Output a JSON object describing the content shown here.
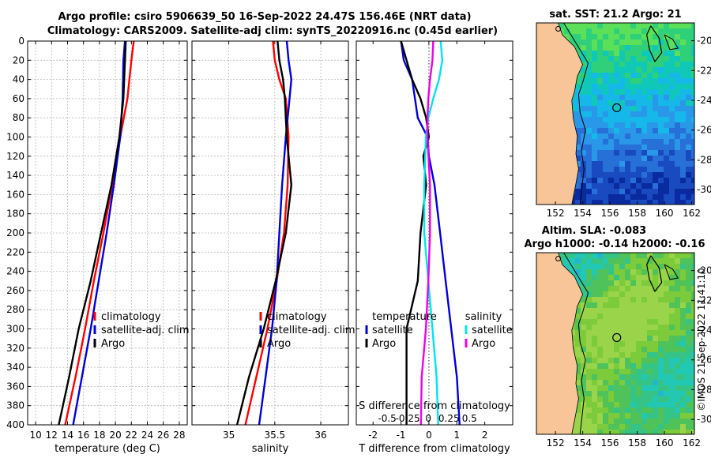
{
  "title_line1": "Argo profile: csiro 5906639_50 16-Sep-2022 24.47S 156.46E (NRT data)",
  "title_line2": "Climatology: CARS2009. Satellite-adj clim: synTS_20220916.nc (0.45d earlier)",
  "side_text": "©IMOS 21-Sep-2022 11:41:10",
  "colors": {
    "climatology": "#ff0000",
    "satellite": "#0000dd",
    "argo": "#000000",
    "sat_s": "#00e5ee",
    "argo_s": "#ee00ee"
  },
  "chart_data": [
    {
      "type": "line",
      "id": "temperature",
      "xlabel": "temperature (deg C)",
      "xlim": [
        9,
        29
      ],
      "xticks": [
        10,
        12,
        14,
        16,
        18,
        20,
        22,
        24,
        26,
        28
      ],
      "ylim": [
        0,
        400
      ],
      "yticks": [
        0,
        20,
        40,
        60,
        80,
        100,
        120,
        140,
        160,
        180,
        200,
        220,
        240,
        260,
        280,
        300,
        320,
        340,
        360,
        380,
        400
      ],
      "grid": true,
      "legend": [
        "climatology",
        "satellite-adj. clim",
        "Argo"
      ],
      "series": [
        {
          "name": "climatology",
          "color": "#ff0000",
          "depth": [
            0,
            20,
            60,
            100,
            150,
            200,
            250,
            300,
            350,
            400
          ],
          "values": [
            22.3,
            22.0,
            21.5,
            20.6,
            19.6,
            18.5,
            17.3,
            16.2,
            15.0,
            13.7
          ]
        },
        {
          "name": "satellite-adj. clim",
          "color": "#0000dd",
          "depth": [
            0,
            20,
            60,
            100,
            150,
            200,
            250,
            300,
            350,
            400
          ],
          "values": [
            21.2,
            21.0,
            20.9,
            20.6,
            19.8,
            18.9,
            17.9,
            16.9,
            15.8,
            14.7
          ]
        },
        {
          "name": "Argo",
          "color": "#000000",
          "depth": [
            0,
            20,
            60,
            100,
            150,
            200,
            250,
            300,
            350,
            400
          ],
          "values": [
            21.3,
            21.2,
            21.0,
            20.5,
            19.5,
            18.2,
            16.9,
            15.4,
            14.2,
            12.9
          ]
        }
      ]
    },
    {
      "type": "line",
      "id": "salinity",
      "xlabel": "salinity",
      "xlim": [
        34.6,
        36.3
      ],
      "xticks": [
        35,
        35.5,
        36
      ],
      "ylim": [
        0,
        400
      ],
      "grid": true,
      "legend": [
        "climatology",
        "satellite-adj. clim",
        "Argo"
      ],
      "series": [
        {
          "name": "climatology",
          "color": "#ff0000",
          "depth": [
            0,
            20,
            40,
            60,
            100,
            150,
            200,
            250,
            300,
            350,
            400
          ],
          "values": [
            35.48,
            35.5,
            35.55,
            35.62,
            35.65,
            35.64,
            35.6,
            35.52,
            35.42,
            35.3,
            35.18
          ]
        },
        {
          "name": "satellite-adj. clim",
          "color": "#0000dd",
          "depth": [
            0,
            20,
            40,
            60,
            100,
            150,
            200,
            250,
            300,
            350,
            400
          ],
          "values": [
            35.63,
            35.65,
            35.68,
            35.66,
            35.62,
            35.58,
            35.55,
            35.52,
            35.47,
            35.4,
            35.33
          ]
        },
        {
          "name": "Argo",
          "color": "#000000",
          "depth": [
            0,
            20,
            40,
            60,
            100,
            150,
            200,
            250,
            300,
            350,
            400
          ],
          "values": [
            35.53,
            35.55,
            35.59,
            35.61,
            35.63,
            35.68,
            35.62,
            35.51,
            35.38,
            35.22,
            35.09
          ]
        }
      ]
    },
    {
      "type": "line",
      "id": "difference",
      "xlabel": "T difference from climatology",
      "xlabel_top": "S difference from climatology",
      "xlim": [
        -2.6,
        3
      ],
      "xticks": [
        -2,
        -1,
        0,
        1,
        2
      ],
      "s_ticks": [
        -0.5,
        -0.25,
        0,
        0.25,
        0.5
      ],
      "s_tick_labels": [
        "-0.5",
        "-0.25",
        "0",
        "0.25",
        "0.5"
      ],
      "ylim": [
        0,
        400
      ],
      "grid": false,
      "legend_left_title": "temperature",
      "legend_right_title": "salinity",
      "legend_left": [
        "satellite",
        "Argo"
      ],
      "legend_right": [
        "satellite",
        "Argo"
      ],
      "series": [
        {
          "name": "T satellite",
          "color": "#0000dd",
          "depth": [
            0,
            20,
            40,
            60,
            80,
            100,
            120,
            150,
            200,
            250,
            300,
            350,
            400
          ],
          "values": [
            -1.0,
            -0.9,
            -0.6,
            -0.5,
            -0.4,
            -0.05,
            0.0,
            0.2,
            0.4,
            0.6,
            0.8,
            1.0,
            1.1
          ]
        },
        {
          "name": "T Argo",
          "color": "#000000",
          "depth": [
            0,
            20,
            40,
            60,
            80,
            100,
            120,
            150,
            200,
            250,
            300,
            350,
            400
          ],
          "values": [
            -1.0,
            -0.8,
            -0.6,
            -0.3,
            -0.1,
            0.0,
            -0.2,
            -0.1,
            -0.3,
            -0.4,
            -0.8,
            -0.8,
            -0.8
          ]
        },
        {
          "name": "S satellite",
          "color": "#00e5ee",
          "depth": [
            0,
            20,
            40,
            60,
            80,
            100,
            150,
            200,
            250,
            300,
            350,
            400
          ],
          "values": [
            0.15,
            0.17,
            0.13,
            0.06,
            0.0,
            -0.03,
            -0.05,
            -0.05,
            0.0,
            0.05,
            0.1,
            0.12
          ]
        },
        {
          "name": "S Argo",
          "color": "#ee00ee",
          "depth": [
            0,
            20,
            40,
            60,
            80,
            100,
            150,
            200,
            250,
            300,
            350,
            400
          ],
          "values": [
            0.06,
            0.05,
            0.02,
            0.0,
            -0.01,
            -0.01,
            0.02,
            0.02,
            0.0,
            -0.03,
            -0.08,
            -0.09
          ]
        }
      ]
    },
    {
      "type": "heatmap",
      "id": "sst_map",
      "title": "sat. SST: 21.2 Argo: 21",
      "xticks": [
        152,
        154,
        156,
        158,
        160,
        162
      ],
      "yticks": [
        -20,
        -22,
        -24,
        -26,
        -28,
        -30
      ],
      "xlim": [
        150.6,
        162.2
      ],
      "ylim": [
        -31,
        -18.8
      ],
      "argo_position": [
        156.5,
        -24.5
      ]
    },
    {
      "type": "heatmap",
      "id": "sla_map",
      "title_line1": "Altim. SLA: -0.083",
      "title_line2": "Argo h1000: -0.14 h2000: -0.16",
      "xticks": [
        152,
        154,
        156,
        158,
        160,
        162
      ],
      "yticks": [
        -20,
        -22,
        -24,
        -26,
        -28,
        -30
      ],
      "xlim": [
        150.6,
        162.2
      ],
      "ylim": [
        -31,
        -18.8
      ],
      "argo_position": [
        156.5,
        -24.5
      ]
    }
  ]
}
